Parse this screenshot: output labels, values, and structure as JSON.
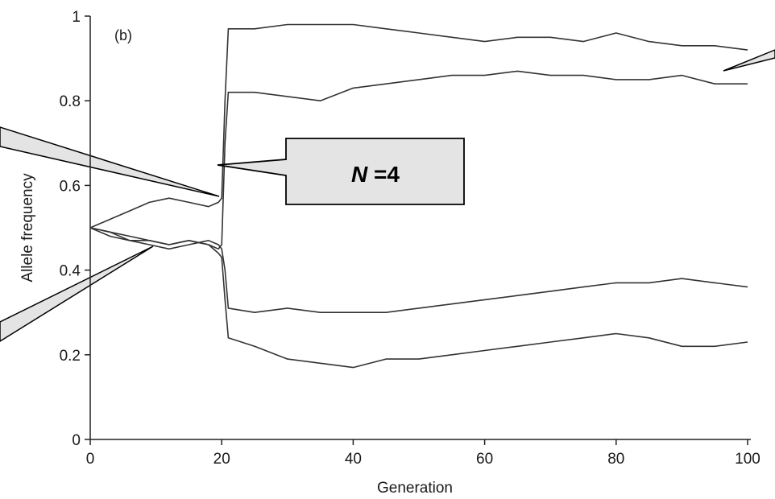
{
  "chart_data": {
    "type": "line",
    "panel_label": "(b)",
    "xlabel": "Generation",
    "ylabel": "Allele frequency",
    "xlim": [
      0,
      100
    ],
    "ylim": [
      0,
      1
    ],
    "x_ticks": [
      {
        "value": 0,
        "label": "0"
      },
      {
        "value": 20,
        "label": "20"
      },
      {
        "value": 40,
        "label": "40"
      },
      {
        "value": 60,
        "label": "60"
      },
      {
        "value": 80,
        "label": "80"
      },
      {
        "value": 100,
        "label": "100"
      }
    ],
    "y_ticks": [
      {
        "value": 0,
        "label": "0"
      },
      {
        "value": 0.2,
        "label": "0.2"
      },
      {
        "value": 0.4,
        "label": "0.4"
      },
      {
        "value": 0.6,
        "label": "0.6"
      },
      {
        "value": 0.8,
        "label": "0.8"
      },
      {
        "value": 1,
        "label": "1"
      }
    ],
    "grid": false,
    "line_color": "#333333",
    "series": [
      {
        "x": [
          0,
          3,
          6,
          9,
          12,
          15,
          18,
          19.5,
          20,
          20.5,
          21,
          25,
          30,
          35,
          40,
          45,
          50,
          55,
          60,
          65,
          70,
          75,
          80,
          85,
          90,
          95,
          100
        ],
        "values": [
          0.5,
          0.52,
          0.54,
          0.56,
          0.57,
          0.56,
          0.55,
          0.56,
          0.57,
          0.8,
          0.97,
          0.97,
          0.98,
          0.98,
          0.98,
          0.97,
          0.96,
          0.95,
          0.94,
          0.95,
          0.95,
          0.94,
          0.96,
          0.94,
          0.93,
          0.93,
          0.92
        ]
      },
      {
        "x": [
          0,
          3,
          6,
          9,
          12,
          15,
          18,
          19.5,
          20,
          20.5,
          21,
          25,
          30,
          35,
          40,
          45,
          50,
          55,
          60,
          65,
          70,
          75,
          80,
          85,
          90,
          95,
          100
        ],
        "values": [
          0.5,
          0.49,
          0.48,
          0.47,
          0.46,
          0.47,
          0.46,
          0.45,
          0.46,
          0.7,
          0.82,
          0.82,
          0.81,
          0.8,
          0.83,
          0.84,
          0.85,
          0.86,
          0.86,
          0.87,
          0.86,
          0.86,
          0.85,
          0.85,
          0.86,
          0.84,
          0.84
        ]
      },
      {
        "x": [
          0,
          3,
          6,
          9,
          12,
          15,
          18,
          19.5,
          20,
          20.5,
          21,
          25,
          30,
          35,
          40,
          45,
          50,
          55,
          60,
          65,
          70,
          75,
          80,
          85,
          90,
          95,
          100
        ],
        "values": [
          0.5,
          0.49,
          0.47,
          0.46,
          0.45,
          0.46,
          0.47,
          0.46,
          0.45,
          0.4,
          0.31,
          0.3,
          0.31,
          0.3,
          0.3,
          0.3,
          0.31,
          0.32,
          0.33,
          0.34,
          0.35,
          0.36,
          0.37,
          0.37,
          0.38,
          0.37,
          0.36
        ]
      },
      {
        "x": [
          0,
          3,
          6,
          9,
          12,
          15,
          18,
          19.5,
          20,
          20.5,
          21,
          25,
          30,
          35,
          40,
          45,
          50,
          55,
          60,
          65,
          70,
          75,
          80,
          85,
          90,
          95,
          100
        ],
        "values": [
          0.5,
          0.48,
          0.47,
          0.47,
          0.46,
          0.47,
          0.46,
          0.44,
          0.43,
          0.33,
          0.24,
          0.22,
          0.19,
          0.18,
          0.17,
          0.19,
          0.19,
          0.2,
          0.21,
          0.22,
          0.23,
          0.24,
          0.25,
          0.24,
          0.22,
          0.22,
          0.23
        ]
      }
    ],
    "annotation": {
      "text": "N =4",
      "italic_part": "N",
      "rest": " =4"
    }
  }
}
